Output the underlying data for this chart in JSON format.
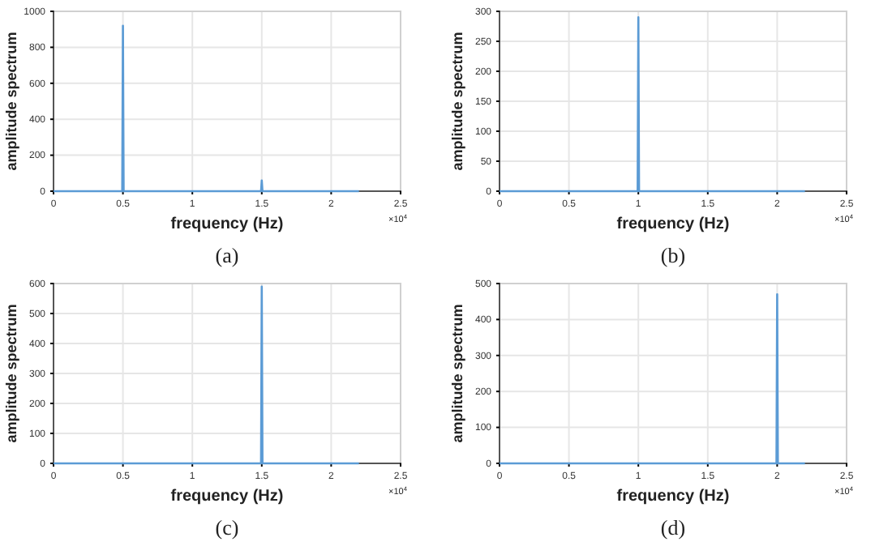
{
  "chart_data": [
    {
      "type": "line",
      "xlabel": "frequency (Hz)",
      "ylabel": "amplitude spectrum",
      "annotations": [
        "×10$^{4}$",
        "(a)"
      ],
      "grid": true,
      "xlim": [
        0,
        2.5
      ],
      "xticks": [
        0,
        0.5,
        1,
        1.5,
        2,
        2.5
      ],
      "ylim": [
        0,
        1000
      ],
      "yticks": [
        0,
        200,
        400,
        600,
        800,
        1000
      ],
      "series": [
        {
          "color": "#5b9bd5",
          "x": [
            0,
            0.495,
            0.5,
            0.505,
            1.495,
            1.5,
            1.505,
            2.2
          ],
          "values": [
            0,
            0,
            920,
            0,
            0,
            60,
            0,
            0
          ]
        }
      ]
    },
    {
      "type": "line",
      "xlabel": "frequency (Hz)",
      "ylabel": "amplitude spectrum",
      "annotations": [
        "×10$^{4}$",
        "(b)"
      ],
      "grid": true,
      "xlim": [
        0,
        2.5
      ],
      "xticks": [
        0,
        0.5,
        1,
        1.5,
        2,
        2.5
      ],
      "ylim": [
        0,
        300
      ],
      "yticks": [
        0,
        50,
        100,
        150,
        200,
        250,
        300
      ],
      "series": [
        {
          "color": "#5b9bd5",
          "x": [
            0,
            0.995,
            1,
            1.005,
            2.2
          ],
          "values": [
            0,
            0,
            290,
            0,
            0
          ]
        }
      ]
    },
    {
      "type": "line",
      "xlabel": "frequency (Hz)",
      "ylabel": "amplitude spectrum",
      "annotations": [
        "×10$^{4}$",
        "(c)"
      ],
      "grid": true,
      "xlim": [
        0,
        2.5
      ],
      "xticks": [
        0,
        0.5,
        1,
        1.5,
        2,
        2.5
      ],
      "ylim": [
        0,
        600
      ],
      "yticks": [
        0,
        100,
        200,
        300,
        400,
        500,
        600
      ],
      "series": [
        {
          "color": "#5b9bd5",
          "x": [
            0,
            1.495,
            1.5,
            1.505,
            2.2
          ],
          "values": [
            0,
            0,
            590,
            0,
            0
          ]
        }
      ]
    },
    {
      "type": "line",
      "xlabel": "frequency (Hz)",
      "ylabel": "amplitude spectrum",
      "annotations": [
        "×10$^{4}$",
        "(d)"
      ],
      "grid": true,
      "xlim": [
        0,
        2.5
      ],
      "xticks": [
        0,
        0.5,
        1,
        1.5,
        2,
        2.5
      ],
      "ylim": [
        0,
        500
      ],
      "yticks": [
        0,
        100,
        200,
        300,
        400,
        500
      ],
      "series": [
        {
          "color": "#5b9bd5",
          "x": [
            0,
            1.995,
            2,
            2.005,
            2.2
          ],
          "values": [
            0,
            0,
            470,
            0,
            0
          ]
        }
      ]
    }
  ]
}
